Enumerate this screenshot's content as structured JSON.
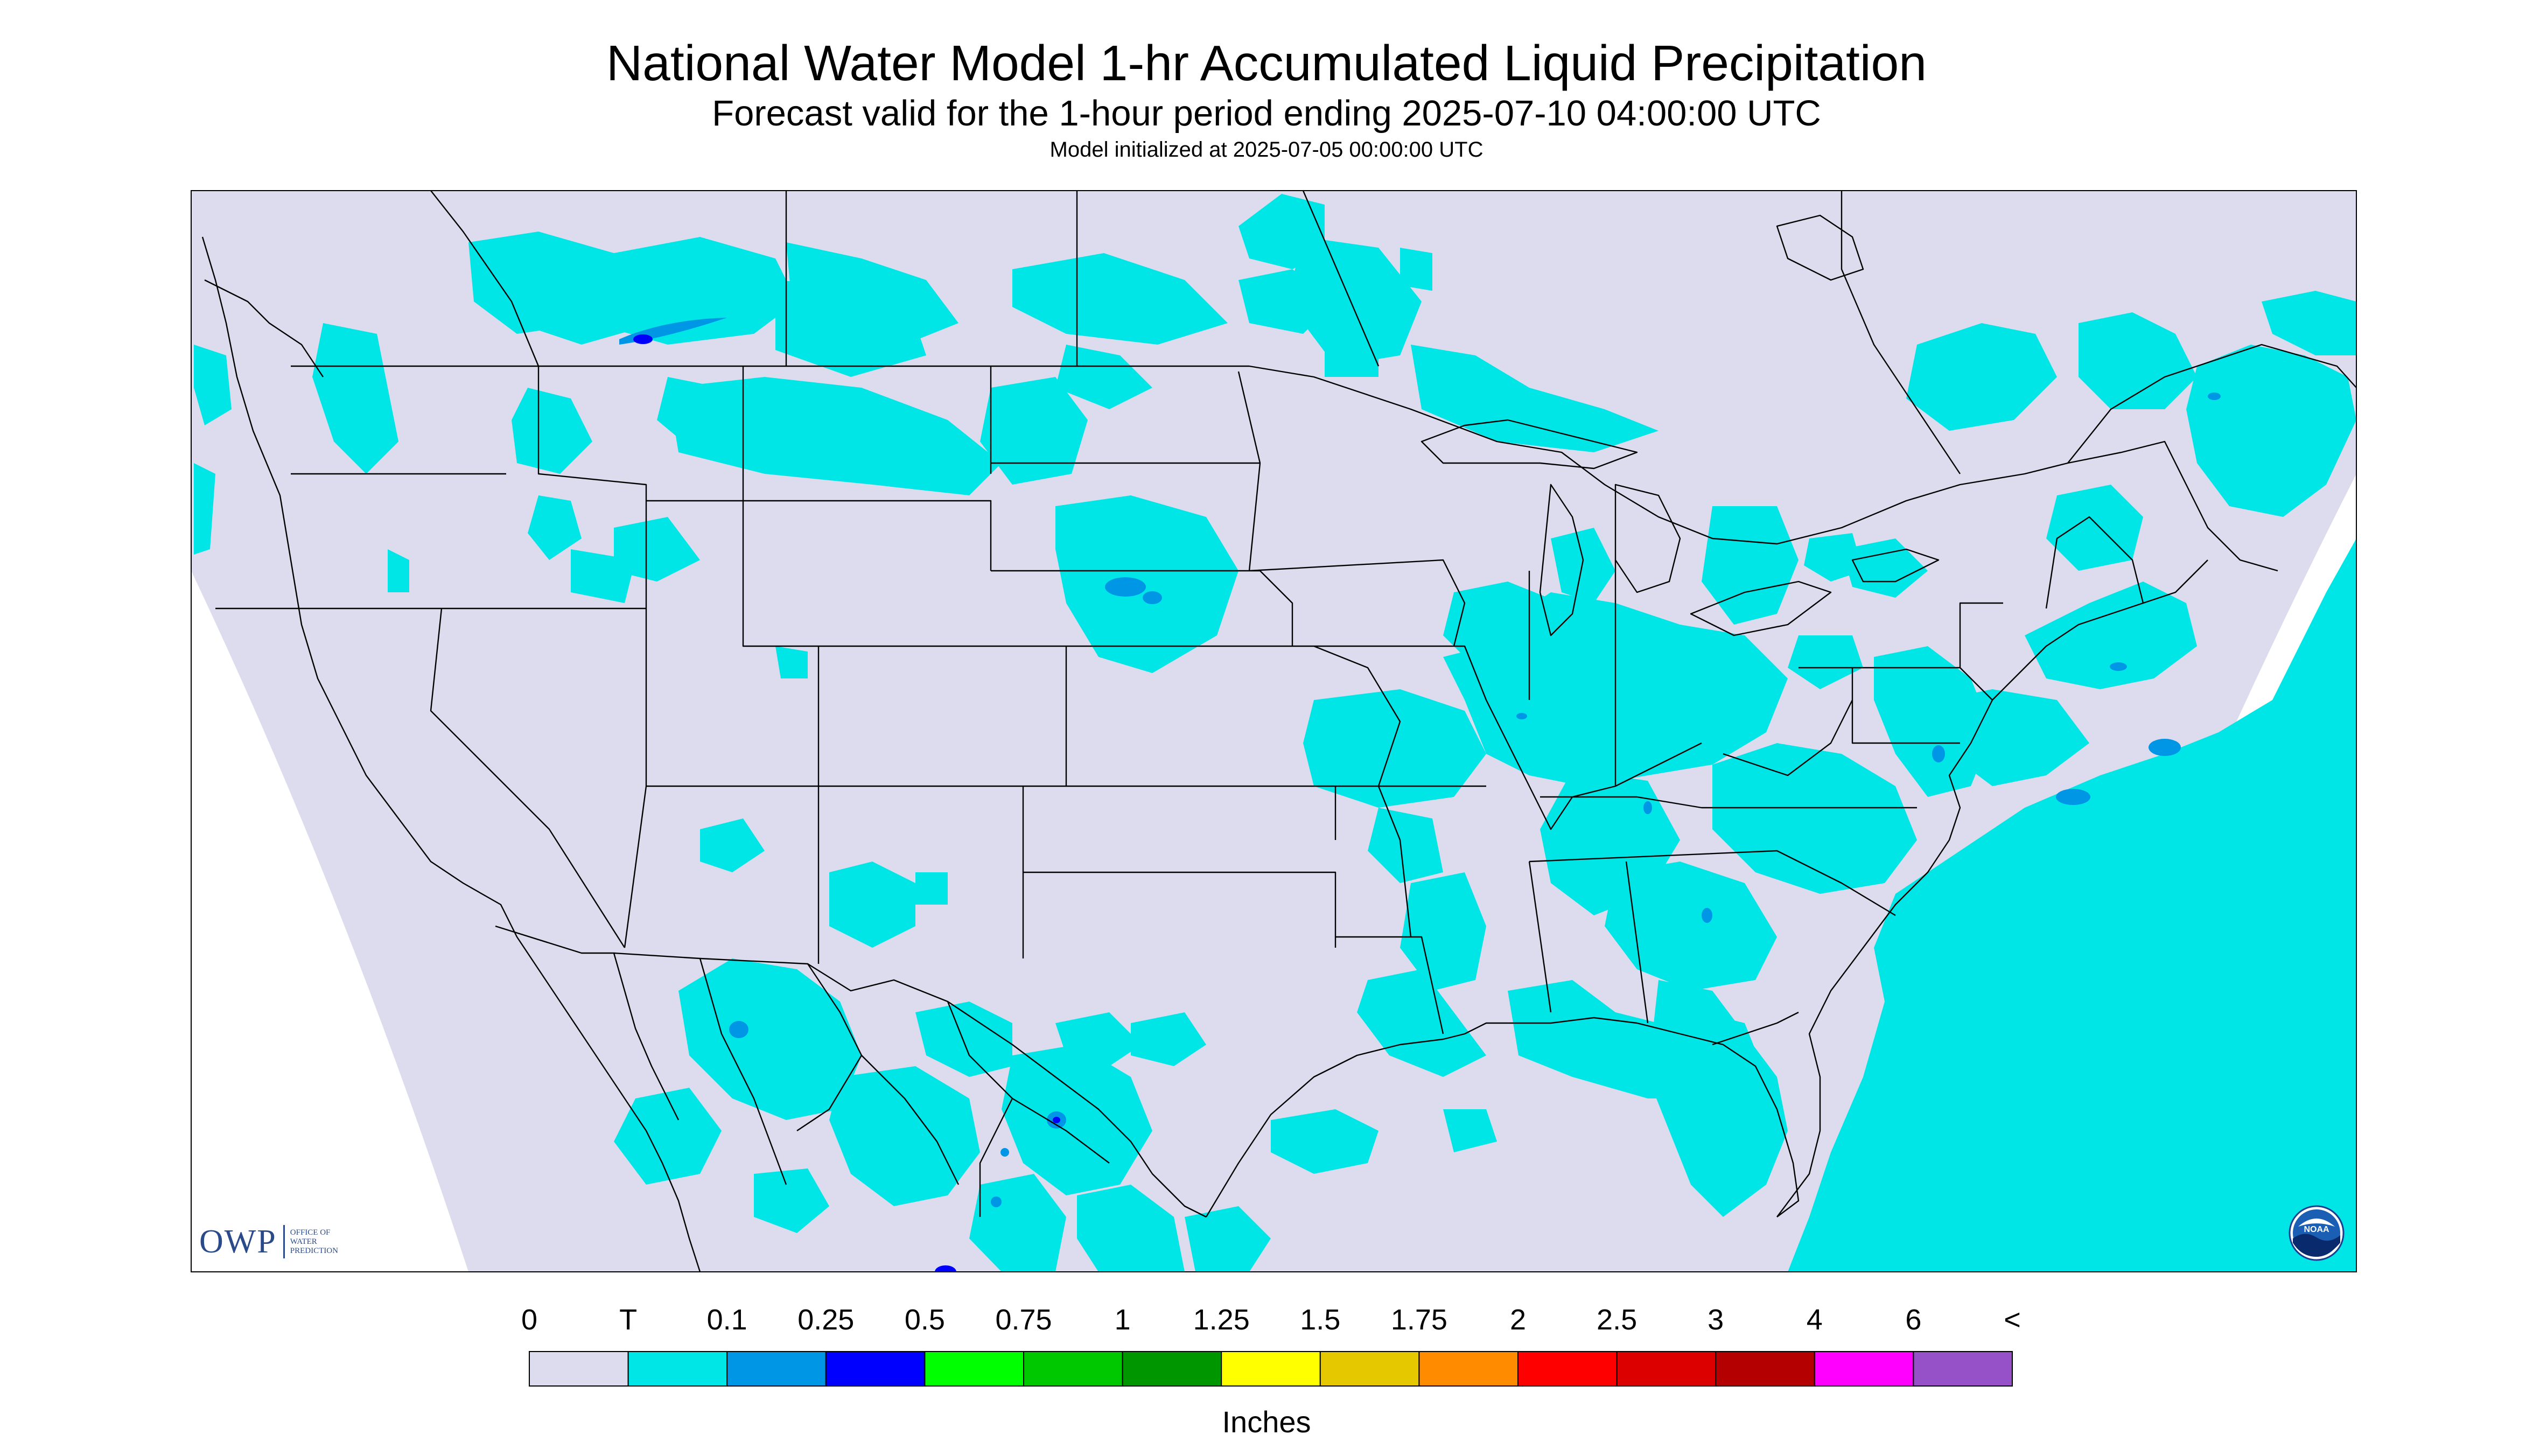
{
  "header": {
    "title": "National Water Model 1-hr Accumulated Liquid Precipitation",
    "subtitle": "Forecast valid for the 1-hour period ending 2025-07-10 04:00:00 UTC",
    "init_line": "Model initialized at 2025-07-05 00:00:00 UTC"
  },
  "legend": {
    "units": "Inches",
    "labels": [
      "0",
      "T",
      "0.1",
      "0.25",
      "0.5",
      "0.75",
      "1",
      "1.25",
      "1.5",
      "1.75",
      "2",
      "2.5",
      "3",
      "4",
      "6",
      "<"
    ],
    "colors": [
      "#dcdcee",
      "#00e6e6",
      "#0096e6",
      "#0000ff",
      "#00ff00",
      "#00c800",
      "#009600",
      "#ffff00",
      "#e6c800",
      "#ff8c00",
      "#ff0000",
      "#dc0000",
      "#b40000",
      "#ff00ff",
      "#9650c8"
    ]
  },
  "map": {
    "background_color": "#dcdcee",
    "no_data_color": "#ffffff",
    "trace_color": "#00e6e6",
    "light_color": "#0096e6",
    "moderate_color": "#0000ff",
    "boundary_color": "#000000"
  },
  "logos": {
    "owp": {
      "mark": "OWP",
      "sub_lines": [
        "OFFICE OF",
        "WATER",
        "PREDICTION"
      ]
    },
    "noaa": {
      "text": "NOAA"
    }
  }
}
